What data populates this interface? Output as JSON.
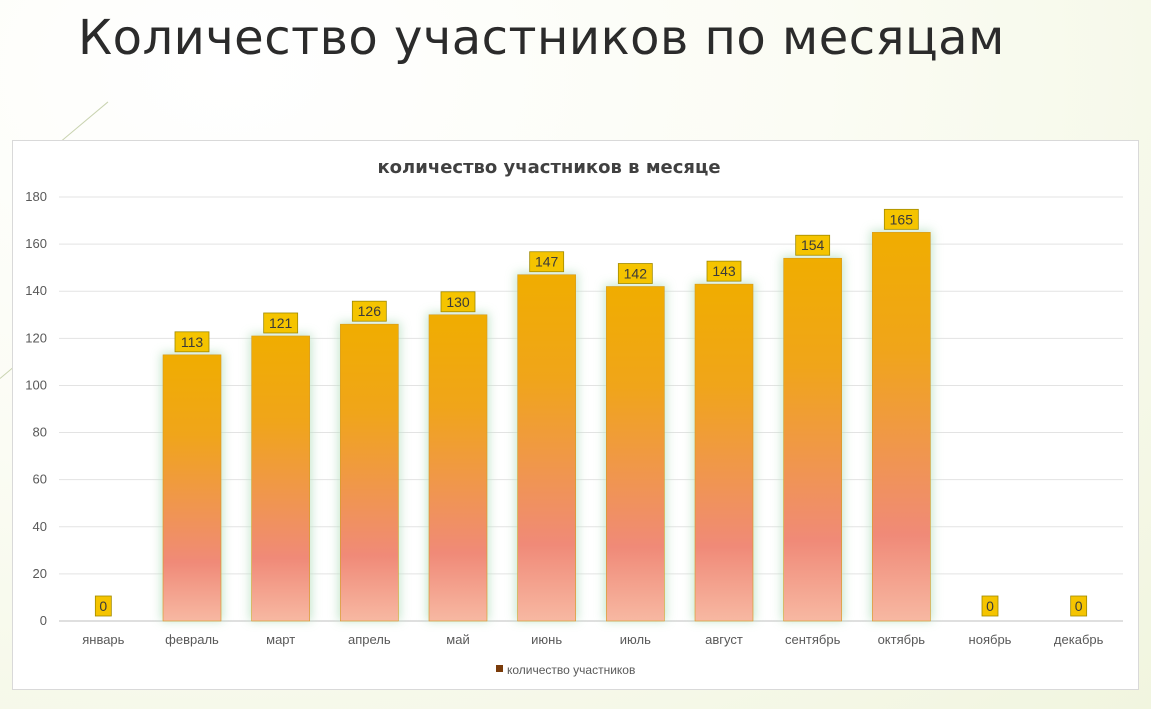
{
  "slide": {
    "title": "Количество участников по месяцам"
  },
  "colors": {
    "bar_top": "#f0ad00",
    "bar_mid": "#f08a78",
    "bar_bottom": "#f7b8a2",
    "glow": "#bfe3c8",
    "label_fill": "#f5c400",
    "label_border": "#a08a00",
    "legend_swatch": "#7a3b0a"
  },
  "chart_data": {
    "type": "bar",
    "title": "количество участников в месяце",
    "categories": [
      "январь",
      "февраль",
      "март",
      "апрель",
      "май",
      "июнь",
      "июль",
      "август",
      "сентябрь",
      "октябрь",
      "ноябрь",
      "декабрь"
    ],
    "series": [
      {
        "name": "количество участников",
        "values": [
          0,
          113,
          121,
          126,
          130,
          147,
          142,
          143,
          154,
          165,
          0,
          0
        ]
      }
    ],
    "ylim": [
      0,
      180
    ],
    "yticks": [
      0,
      20,
      40,
      60,
      80,
      100,
      120,
      140,
      160,
      180
    ],
    "grid": true,
    "data_labels": true,
    "legend": "bottom-center"
  }
}
